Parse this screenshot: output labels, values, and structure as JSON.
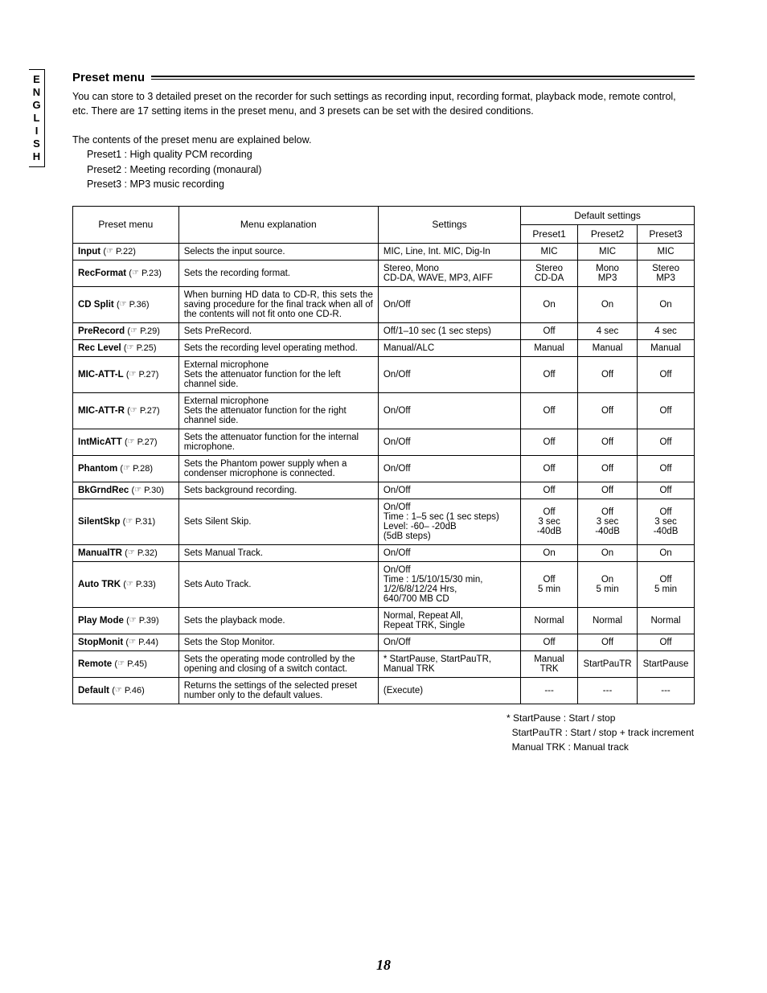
{
  "lang_tab": "ENGLISH",
  "heading": "Preset menu",
  "intro": "You can store to 3 detailed preset on the recorder for such settings as recording input, recording format, playback mode, remote control, etc. There are 17 setting items in the preset menu, and 3 presets can be set with the desired conditions.",
  "contents_note": "The contents of the preset menu are explained below.",
  "presets_desc": [
    "Preset1 : High quality PCM recording",
    "Preset2 : Meeting recording (monaural)",
    "Preset3 : MP3 music recording"
  ],
  "table": {
    "head": {
      "menu": "Preset menu",
      "explanation": "Menu explanation",
      "settings": "Settings",
      "default": "Default settings",
      "p1": "Preset1",
      "p2": "Preset2",
      "p3": "Preset3"
    },
    "rows": [
      {
        "name": "Input",
        "ref": "P.22",
        "expl": "Selects the input source.",
        "settings": "MIC, Line, Int. MIC, Dig-In",
        "p1": "MIC",
        "p2": "MIC",
        "p3": "MIC"
      },
      {
        "name": "RecFormat",
        "ref": "P.23",
        "expl": "Sets the recording format.",
        "settings": "Stereo, Mono\nCD-DA, WAVE, MP3, AIFF",
        "p1": "Stereo\nCD-DA",
        "p2": "Mono\nMP3",
        "p3": "Stereo\nMP3"
      },
      {
        "name": "CD Split",
        "ref": "P.36",
        "expl": "When burning HD data to CD-R, this sets the saving procedure for the final track when all of the contents will not fit onto one CD-R.",
        "expl_justify": true,
        "settings": "On/Off",
        "p1": "On",
        "p2": "On",
        "p3": "On"
      },
      {
        "name": "PreRecord",
        "ref": "P.29",
        "expl": "Sets PreRecord.",
        "settings": "Off/1–10 sec (1 sec steps)",
        "p1": "Off",
        "p2": "4 sec",
        "p3": "4 sec"
      },
      {
        "name": "Rec Level",
        "ref": "P.25",
        "expl": "Sets the recording level operating method.",
        "settings": "Manual/ALC",
        "p1": "Manual",
        "p2": "Manual",
        "p3": "Manual"
      },
      {
        "name": "MIC-ATT-L",
        "ref": "P.27",
        "expl": "External microphone\nSets the attenuator function for the left channel side.",
        "settings": "On/Off",
        "p1": "Off",
        "p2": "Off",
        "p3": "Off"
      },
      {
        "name": "MIC-ATT-R",
        "ref": "P.27",
        "expl": "External microphone\nSets the attenuator function for the right channel side.",
        "settings": "On/Off",
        "p1": "Off",
        "p2": "Off",
        "p3": "Off"
      },
      {
        "name": "IntMicATT",
        "ref": "P.27",
        "expl": "Sets the attenuator function for the internal microphone.",
        "settings": "On/Off",
        "p1": "Off",
        "p2": "Off",
        "p3": "Off"
      },
      {
        "name": "Phantom",
        "ref": "P.28",
        "expl": "Sets the Phantom power supply when a condenser microphone is connected.",
        "settings": "On/Off",
        "p1": "Off",
        "p2": "Off",
        "p3": "Off"
      },
      {
        "name": "BkGrndRec",
        "ref": "P.30",
        "expl": "Sets background recording.",
        "settings": "On/Off",
        "p1": "Off",
        "p2": "Off",
        "p3": "Off"
      },
      {
        "name": "SilentSkp",
        "ref": "P.31",
        "expl": "Sets Silent Skip.",
        "settings": "On/Off\nTime : 1–5 sec (1 sec steps)\nLevel: -60– -20dB\n(5dB steps)",
        "p1": "Off\n3 sec\n-40dB",
        "p2": "Off\n3 sec\n-40dB",
        "p3": "Off\n3 sec\n-40dB"
      },
      {
        "name": "ManualTR",
        "ref": "P.32",
        "expl": "Sets Manual Track.",
        "settings": "On/Off",
        "p1": "On",
        "p2": "On",
        "p3": "On"
      },
      {
        "name": "Auto TRK",
        "ref": "P.33",
        "expl": "Sets Auto Track.",
        "settings": "On/Off\nTime : 1/5/10/15/30 min,\n1/2/6/8/12/24 Hrs,\n640/700 MB CD",
        "p1": "Off\n5 min",
        "p2": "On\n5 min",
        "p3": "Off\n5 min"
      },
      {
        "name": "Play Mode",
        "ref": "P.39",
        "expl": "Sets the playback mode.",
        "settings": "Normal, Repeat All,\nRepeat TRK, Single",
        "p1": "Normal",
        "p2": "Normal",
        "p3": "Normal"
      },
      {
        "name": "StopMonit",
        "ref": "P.44",
        "expl": "Sets the Stop Monitor.",
        "settings": "On/Off",
        "p1": "Off",
        "p2": "Off",
        "p3": "Off"
      },
      {
        "name": "Remote",
        "ref": "P.45",
        "expl": "Sets the operating mode controlled by the opening and closing of a switch contact.",
        "settings": "* StartPause, StartPauTR,\nManual TRK",
        "p1": "Manual TRK",
        "p2": "StartPauTR",
        "p3": "StartPause"
      },
      {
        "name": "Default",
        "ref": "P.46",
        "expl": "Returns the settings of the selected preset number only to the default values.",
        "settings": "(Execute)",
        "p1": "---",
        "p2": "---",
        "p3": "---"
      }
    ]
  },
  "footnotes": [
    "* StartPause : Start / stop",
    "  StartPauTR : Start / stop + track increment",
    "  Manual TRK : Manual track"
  ],
  "page_number": "18"
}
